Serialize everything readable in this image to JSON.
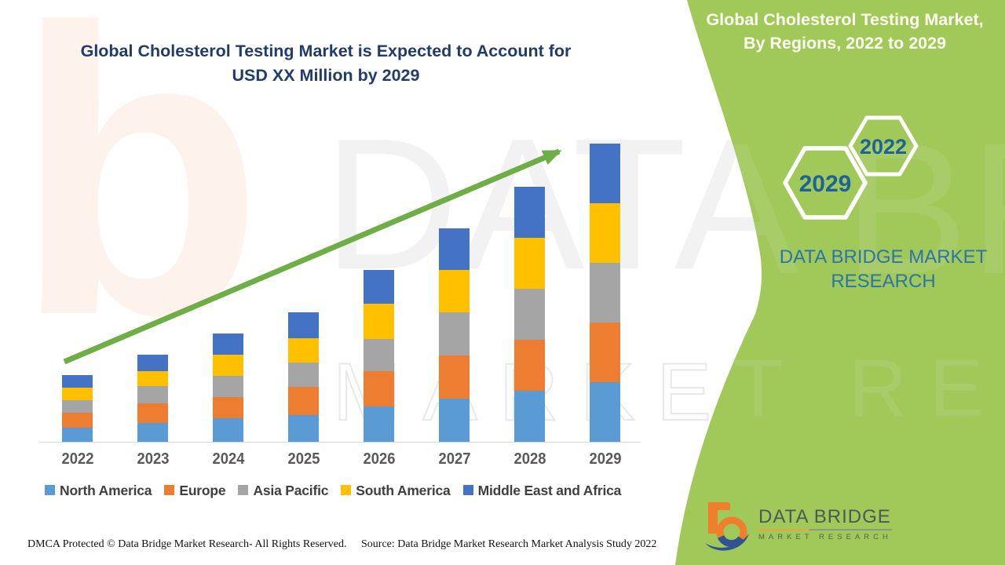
{
  "main_title": {
    "line1": "Global Cholesterol Testing Market is Expected to Account for",
    "line2": "USD XX Million by 2029"
  },
  "side_panel": {
    "title_line1": "Global Cholesterol Testing Market,",
    "title_line2": "By Regions, 2022 to 2029",
    "hexagon_back_year": "2022",
    "hexagon_front_year": "2029",
    "brand_line1": "DATA BRIDGE MARKET",
    "brand_line2": "RESEARCH",
    "bg_color": "#A0C95A"
  },
  "logo": {
    "brand": "DATA BRIDGE",
    "tagline": "MARKET RESEARCH"
  },
  "watermarks": {
    "big_letter": "b",
    "row1": "DATA BRIDGE",
    "row2": "MARKET RESEARCH"
  },
  "footer": {
    "dmca": "DMCA Protected © Data Bridge Market Research- All Rights Reserved.",
    "source": "Source: Data Bridge Market Research Market Analysis Study 2022"
  },
  "colors": {
    "panel_green": "#A0C95A",
    "trend_arrow_green": "#6FAD47",
    "title_navy": "#1F3C6D",
    "panel_text_blue": "#2C74A9",
    "hexagon_year_blue": "#1D6395",
    "axis_label_gray": "#595959",
    "legend_text_gray": "#3F3F3F",
    "axis_line_gray": "#D8D8D8"
  },
  "chart_data": {
    "type": "bar",
    "stacked": true,
    "title": "Global Cholesterol Testing Market is Expected to Account for USD XX Million by 2029",
    "xlabel": "",
    "ylabel": "",
    "value_note": "No y-axis is drawn; values are relative estimated units read from bar heights",
    "categories": [
      "2022",
      "2023",
      "2024",
      "2025",
      "2026",
      "2027",
      "2028",
      "2029"
    ],
    "series": [
      {
        "name": "North America",
        "color": "#5B9BD5",
        "values": [
          18,
          24,
          30,
          34,
          45,
          55,
          65,
          76
        ]
      },
      {
        "name": "Europe",
        "color": "#ED7D31",
        "values": [
          19,
          25,
          27,
          36,
          45,
          55,
          65,
          76
        ]
      },
      {
        "name": "Asia Pacific",
        "color": "#A5A5A5",
        "values": [
          16,
          22,
          27,
          31,
          41,
          55,
          65,
          76
        ]
      },
      {
        "name": "South America",
        "color": "#FFC000",
        "values": [
          16,
          19,
          27,
          31,
          45,
          54,
          65,
          76
        ]
      },
      {
        "name": "Middle East and Africa",
        "color": "#4472C4",
        "values": [
          16,
          21,
          27,
          33,
          43,
          53,
          65,
          76
        ]
      }
    ],
    "totals": [
      85,
      111,
      138,
      165,
      219,
      272,
      325,
      380
    ],
    "legend_position": "bottom",
    "grid": false,
    "trend_arrow": true
  }
}
